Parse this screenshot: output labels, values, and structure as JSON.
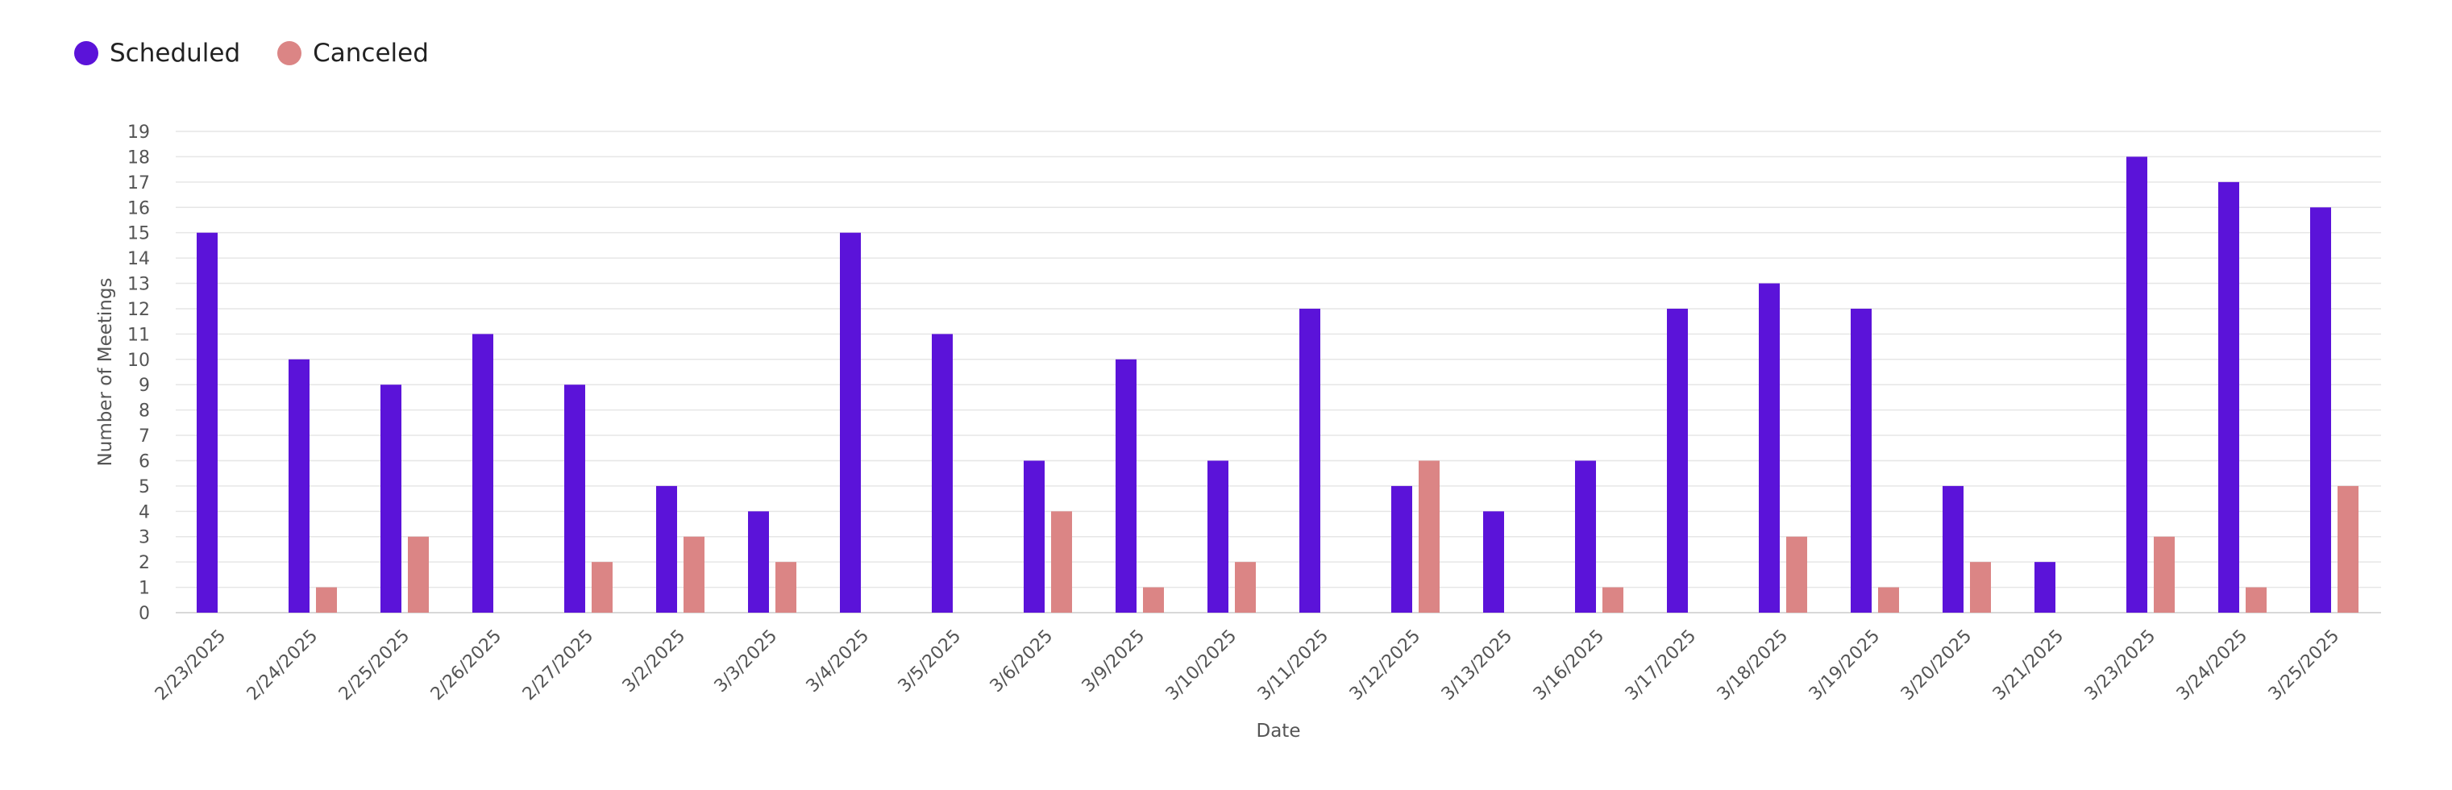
{
  "legend": {
    "items": [
      {
        "label": "Scheduled",
        "color": "#5b13d9"
      },
      {
        "label": "Canceled",
        "color": "#db8585"
      }
    ]
  },
  "chart_data": {
    "type": "bar",
    "title": "",
    "xlabel": "Date",
    "ylabel": "Number of Meetings",
    "ylim": [
      0,
      19
    ],
    "yticks": [
      0,
      1,
      2,
      3,
      4,
      5,
      6,
      7,
      8,
      9,
      10,
      11,
      12,
      13,
      14,
      15,
      16,
      17,
      18,
      19
    ],
    "grid": true,
    "legend_position": "top-left",
    "categories": [
      "2/23/2025",
      "2/24/2025",
      "2/25/2025",
      "2/26/2025",
      "2/27/2025",
      "3/2/2025",
      "3/3/2025",
      "3/4/2025",
      "3/5/2025",
      "3/6/2025",
      "3/9/2025",
      "3/10/2025",
      "3/11/2025",
      "3/12/2025",
      "3/13/2025",
      "3/16/2025",
      "3/17/2025",
      "3/18/2025",
      "3/19/2025",
      "3/20/2025",
      "3/21/2025",
      "3/23/2025",
      "3/24/2025",
      "3/25/2025"
    ],
    "series": [
      {
        "name": "Scheduled",
        "color": "#5b13d9",
        "values": [
          15,
          10,
          9,
          11,
          9,
          5,
          4,
          15,
          11,
          6,
          10,
          6,
          12,
          5,
          4,
          6,
          12,
          13,
          12,
          5,
          2,
          18,
          17,
          16
        ]
      },
      {
        "name": "Canceled",
        "color": "#db8585",
        "values": [
          0,
          1,
          3,
          0,
          2,
          3,
          2,
          0,
          0,
          4,
          1,
          2,
          0,
          6,
          0,
          1,
          0,
          3,
          1,
          2,
          0,
          3,
          1,
          5
        ]
      }
    ]
  }
}
